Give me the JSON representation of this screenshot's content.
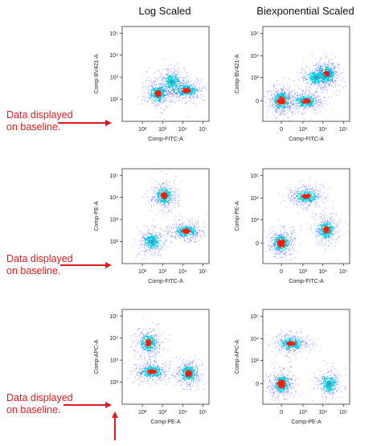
{
  "column_headers": [
    "Log Scaled",
    "Biexponential Scaled"
  ],
  "annotations": [
    {
      "line1": "Data displayed",
      "line2": "on baseline."
    },
    {
      "line1": "Data displayed",
      "line2": "on baseline."
    },
    {
      "line1": "Data displayed",
      "line2": "on baseline."
    }
  ],
  "colors": {
    "annotation": "#e31a1c",
    "density_low": "#1f3dff",
    "density_mid": "#00c8e6",
    "density_high": "#ff1a00",
    "axis": "#333333"
  },
  "chart_data": [
    {
      "type": "scatter",
      "scale": "log",
      "xlabel": "Comp-FITC-A",
      "ylabel": "Comp-BV421-A",
      "x_ticks": [
        "10²",
        "10³",
        "10⁴",
        "10⁵"
      ],
      "y_ticks": [
        "10²",
        "10³",
        "10⁴",
        "10⁵"
      ],
      "xlim": [
        10,
        200000
      ],
      "ylim": [
        10,
        200000
      ],
      "populations": [
        {
          "x": 600,
          "y": 180,
          "density": "high"
        },
        {
          "x": 15000,
          "y": 250,
          "density": "high"
        },
        {
          "x": 3000,
          "y": 600,
          "density": "medium"
        }
      ]
    },
    {
      "type": "scatter",
      "scale": "biexponential",
      "xlabel": "Comp-FITC-A",
      "ylabel": "Comp-BV421-A",
      "x_ticks": [
        "0",
        "10³",
        "10⁴",
        "10⁵"
      ],
      "y_ticks": [
        "0",
        "10³",
        "10⁴",
        "10⁵"
      ],
      "populations": [
        {
          "x": 0,
          "y": 0,
          "density": "very high"
        },
        {
          "x": 1500,
          "y": 0,
          "density": "high"
        },
        {
          "x": 15000,
          "y": 1500,
          "density": "high"
        },
        {
          "x": 5000,
          "y": 1000,
          "density": "medium"
        }
      ]
    },
    {
      "type": "scatter",
      "scale": "log",
      "xlabel": "Comp-FITC-A",
      "ylabel": "Comp-PE-A",
      "x_ticks": [
        "10²",
        "10³",
        "10⁴",
        "10⁵"
      ],
      "y_ticks": [
        "10²",
        "10³",
        "10⁴",
        "10⁵"
      ],
      "xlim": [
        10,
        200000
      ],
      "ylim": [
        10,
        200000
      ],
      "populations": [
        {
          "x": 1200,
          "y": 12000,
          "density": "high"
        },
        {
          "x": 15000,
          "y": 300,
          "density": "high"
        },
        {
          "x": 300,
          "y": 100,
          "density": "medium"
        }
      ]
    },
    {
      "type": "scatter",
      "scale": "biexponential",
      "xlabel": "Comp-FITC-A",
      "ylabel": "Comp-PE-A",
      "x_ticks": [
        "0",
        "10³",
        "10⁴",
        "10⁵"
      ],
      "y_ticks": [
        "0",
        "10³",
        "10⁴",
        "10⁵"
      ],
      "populations": [
        {
          "x": 0,
          "y": 0,
          "density": "very high"
        },
        {
          "x": 1500,
          "y": 12000,
          "density": "high"
        },
        {
          "x": 15000,
          "y": 300,
          "density": "high"
        }
      ]
    },
    {
      "type": "scatter",
      "scale": "log",
      "xlabel": "Comp-PE-A",
      "ylabel": "Comp-APC-A",
      "x_ticks": [
        "10²",
        "10³",
        "10⁴",
        "10⁵"
      ],
      "y_ticks": [
        "10²",
        "10³",
        "10⁴",
        "10⁵"
      ],
      "xlim": [
        10,
        200000
      ],
      "ylim": [
        10,
        200000
      ],
      "populations": [
        {
          "x": 200,
          "y": 6000,
          "density": "high"
        },
        {
          "x": 300,
          "y": 300,
          "density": "high"
        },
        {
          "x": 20000,
          "y": 250,
          "density": "high"
        }
      ]
    },
    {
      "type": "scatter",
      "scale": "biexponential",
      "xlabel": "Comp-PE-A",
      "ylabel": "Comp-APC-A",
      "x_ticks": [
        "0",
        "10³",
        "10⁴",
        "10⁵"
      ],
      "y_ticks": [
        "0",
        "10³",
        "10⁴",
        "10⁵"
      ],
      "populations": [
        {
          "x": 0,
          "y": 0,
          "density": "very high"
        },
        {
          "x": 200,
          "y": 6000,
          "density": "high"
        },
        {
          "x": 20000,
          "y": 0,
          "density": "medium"
        }
      ]
    }
  ]
}
